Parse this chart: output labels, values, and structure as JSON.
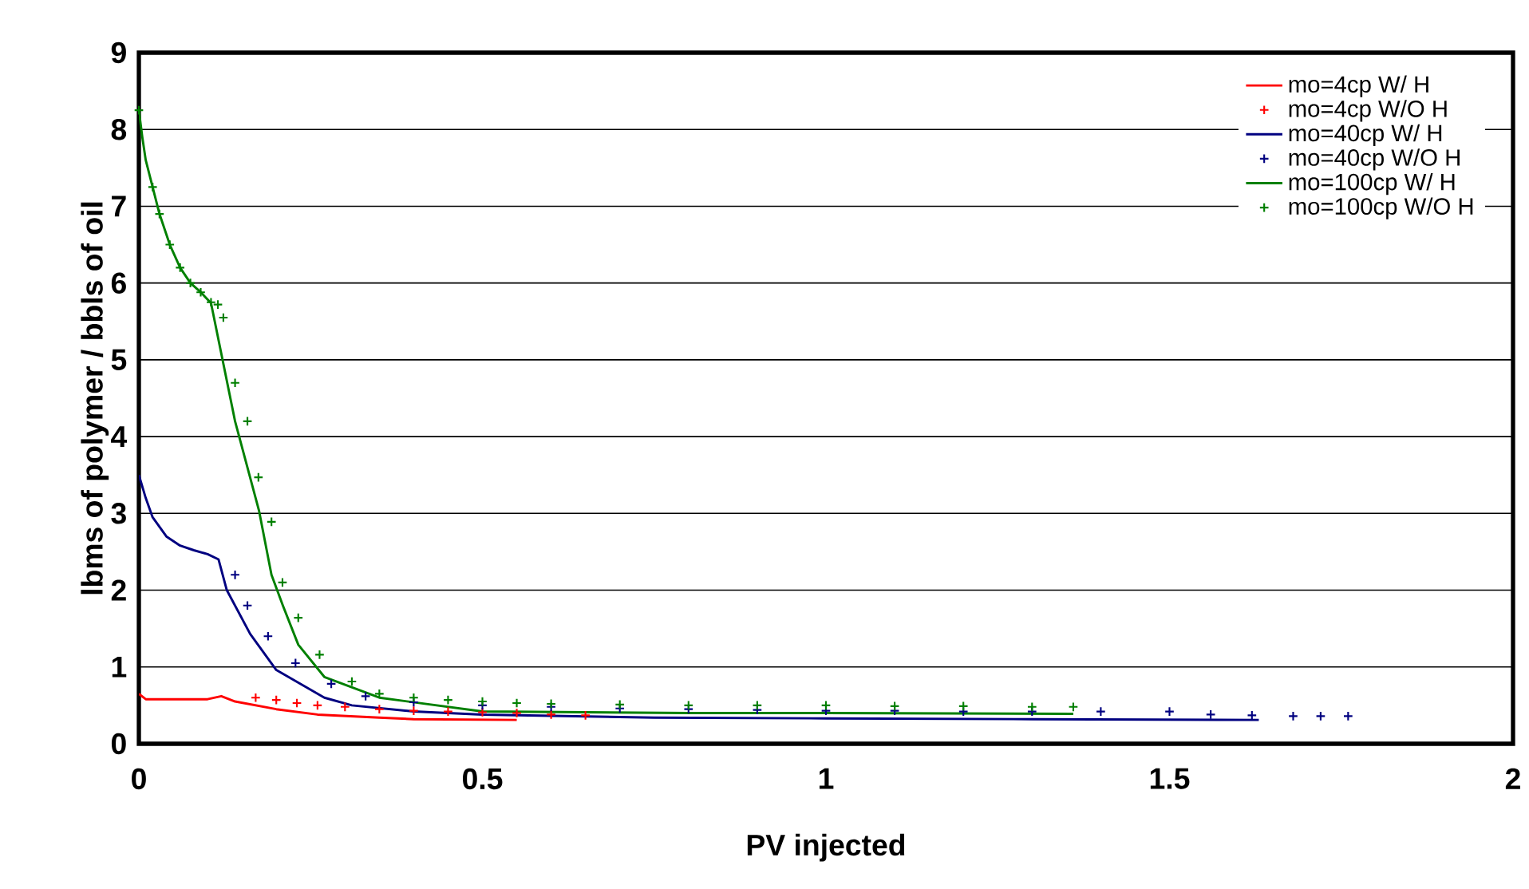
{
  "chart_data": {
    "type": "line",
    "xlabel": "PV injected",
    "ylabel": "lbms of polymer / bbls of oil",
    "xlim": [
      0,
      2
    ],
    "xticks": [
      0,
      0.5,
      1,
      1.5,
      2
    ],
    "ylim": [
      0,
      9
    ],
    "yticks": [
      0,
      1,
      2,
      3,
      4,
      5,
      6,
      7,
      8,
      9
    ],
    "grid": "y",
    "legend": "top right",
    "series": [
      {
        "name": "mo=4cp W/ H",
        "type": "line",
        "color": "#ff0000",
        "x": [
          0,
          0.01,
          0.05,
          0.1,
          0.12,
          0.14,
          0.2,
          0.26,
          0.35,
          0.4,
          0.55
        ],
        "values": [
          0.65,
          0.58,
          0.58,
          0.58,
          0.62,
          0.55,
          0.45,
          0.38,
          0.34,
          0.32,
          0.31
        ]
      },
      {
        "name": "mo=4cp W/O H",
        "type": "scatter",
        "marker": "cross",
        "color": "#ff0000",
        "x": [
          0.17,
          0.2,
          0.23,
          0.26,
          0.3,
          0.35,
          0.4,
          0.45,
          0.5,
          0.55,
          0.6,
          0.65
        ],
        "values": [
          0.6,
          0.57,
          0.53,
          0.5,
          0.48,
          0.45,
          0.43,
          0.42,
          0.41,
          0.4,
          0.38,
          0.37
        ]
      },
      {
        "name": "mo=40cp W/ H",
        "type": "line",
        "color": "#000080",
        "x": [
          0,
          0.01,
          0.02,
          0.04,
          0.06,
          0.08,
          0.1,
          0.116,
          0.128,
          0.162,
          0.2,
          0.27,
          0.31,
          0.4,
          0.5,
          0.75,
          1.0,
          1.3,
          1.63
        ],
        "values": [
          3.5,
          3.2,
          2.95,
          2.7,
          2.58,
          2.52,
          2.47,
          2.4,
          2.0,
          1.43,
          0.96,
          0.6,
          0.5,
          0.42,
          0.38,
          0.34,
          0.33,
          0.32,
          0.31
        ]
      },
      {
        "name": "mo=40cp W/O H",
        "type": "scatter",
        "marker": "cross",
        "color": "#000080",
        "x": [
          0.14,
          0.158,
          0.188,
          0.228,
          0.28,
          0.33,
          0.4,
          0.5,
          0.6,
          0.7,
          0.8,
          0.9,
          1.0,
          1.1,
          1.2,
          1.3,
          1.4,
          1.5,
          1.56,
          1.62,
          1.68,
          1.72,
          1.76
        ],
        "values": [
          2.2,
          1.8,
          1.4,
          1.05,
          0.78,
          0.62,
          0.54,
          0.5,
          0.48,
          0.46,
          0.45,
          0.44,
          0.43,
          0.43,
          0.42,
          0.42,
          0.42,
          0.42,
          0.38,
          0.37,
          0.36,
          0.36,
          0.36
        ]
      },
      {
        "name": "mo=100cp W/ H",
        "type": "line",
        "color": "#008000",
        "x": [
          0,
          0.005,
          0.01,
          0.02,
          0.03,
          0.045,
          0.06,
          0.075,
          0.09,
          0.105,
          0.14,
          0.175,
          0.193,
          0.21,
          0.232,
          0.27,
          0.35,
          0.5,
          0.8,
          1.0,
          1.36
        ],
        "values": [
          8.25,
          7.9,
          7.6,
          7.25,
          6.9,
          6.5,
          6.2,
          6.0,
          5.88,
          5.74,
          4.2,
          3.03,
          2.2,
          1.79,
          1.29,
          0.87,
          0.6,
          0.42,
          0.4,
          0.4,
          0.39
        ]
      },
      {
        "name": "mo=100cp W/O H",
        "type": "scatter",
        "marker": "cross",
        "color": "#008000",
        "x": [
          0,
          0.02,
          0.03,
          0.045,
          0.06,
          0.075,
          0.09,
          0.105,
          0.115,
          0.123,
          0.14,
          0.158,
          0.174,
          0.193,
          0.209,
          0.232,
          0.263,
          0.31,
          0.35,
          0.4,
          0.45,
          0.5,
          0.55,
          0.6,
          0.7,
          0.8,
          0.9,
          1.0,
          1.1,
          1.2,
          1.3,
          1.36
        ],
        "values": [
          8.25,
          7.25,
          6.9,
          6.5,
          6.2,
          6.0,
          5.88,
          5.75,
          5.72,
          5.55,
          4.7,
          4.2,
          3.47,
          2.89,
          2.1,
          1.64,
          1.16,
          0.81,
          0.65,
          0.6,
          0.57,
          0.55,
          0.53,
          0.52,
          0.51,
          0.5,
          0.5,
          0.5,
          0.49,
          0.49,
          0.48,
          0.48
        ]
      }
    ]
  }
}
